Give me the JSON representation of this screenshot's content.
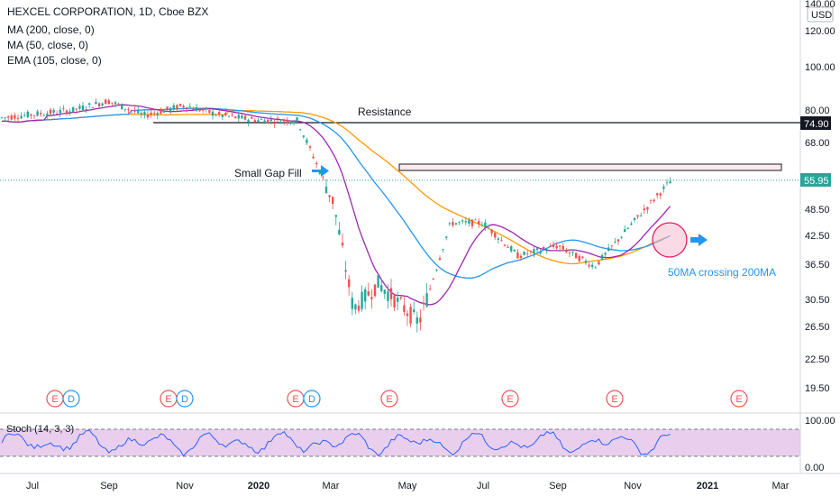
{
  "header": {
    "symbol_line": "HEXCEL CORPORATION, 1D, Cboe BZX",
    "indicators": [
      "MA (200, close, 0)",
      "MA (50, close, 0)",
      "EMA (105, close, 0)"
    ],
    "currency": "USD"
  },
  "colors": {
    "up": "#26a69a",
    "down": "#ef5350",
    "ma200": "#2196f3",
    "ma50": "#9c27b0",
    "ema105": "#ff9800",
    "stoch_fill": "#e1bee7",
    "stoch_line": "#2962ff",
    "price_label": "#26a69a",
    "annotation_text": "#2196f3"
  },
  "chart_data": {
    "type": "candlestick",
    "price_axis": {
      "scale": "log",
      "ticks": [
        "140.00",
        "120.00",
        "100.00",
        "80.00",
        "68.00",
        "55.95",
        "48.50",
        "42.50",
        "36.50",
        "30.50",
        "26.50",
        "22.50",
        "19.50"
      ],
      "last_price_label": "55.95",
      "resistance_label": "74.90"
    },
    "time_axis": {
      "ticks": [
        "Jul",
        "Sep",
        "Nov",
        "2020",
        "Mar",
        "May",
        "Jul",
        "Sep",
        "Nov",
        "2021",
        "Mar"
      ]
    },
    "approx_close_path": [
      {
        "x": "Jul",
        "y": 77
      },
      {
        "x": "Aug",
        "y": 80
      },
      {
        "x": "Sep",
        "y": 84
      },
      {
        "x": "Oct",
        "y": 78
      },
      {
        "x": "Nov",
        "y": 82
      },
      {
        "x": "Dec",
        "y": 78
      },
      {
        "x": "2020",
        "y": 76
      },
      {
        "x": "Feb",
        "y": 76
      },
      {
        "x": "Mar",
        "y": 50
      },
      {
        "x": "Mar (low)",
        "y": 29
      },
      {
        "x": "Apr",
        "y": 33
      },
      {
        "x": "May",
        "y": 27
      },
      {
        "x": "Jun",
        "y": 45
      },
      {
        "x": "Jul",
        "y": 45
      },
      {
        "x": "Aug",
        "y": 38
      },
      {
        "x": "Sep",
        "y": 40
      },
      {
        "x": "Oct",
        "y": 36
      },
      {
        "x": "Nov",
        "y": 45
      },
      {
        "x": "Dec",
        "y": 56
      }
    ],
    "series": [
      {
        "name": "MA (200, close, 0)"
      },
      {
        "name": "MA (50, close, 0)"
      },
      {
        "name": "EMA (105, close, 0)"
      }
    ],
    "annotations": [
      "Resistance",
      "Small Gap Fill",
      "50MA crossing 200MA"
    ],
    "events": [
      "E",
      "D",
      "E",
      "D",
      "E",
      "D",
      "E",
      "E",
      "E",
      "E"
    ],
    "oscillator": {
      "name": "Stoch (14, 3, 3)",
      "ticks": [
        "100.00",
        "0.00"
      ],
      "upper_band": 80,
      "lower_band": 20
    }
  }
}
